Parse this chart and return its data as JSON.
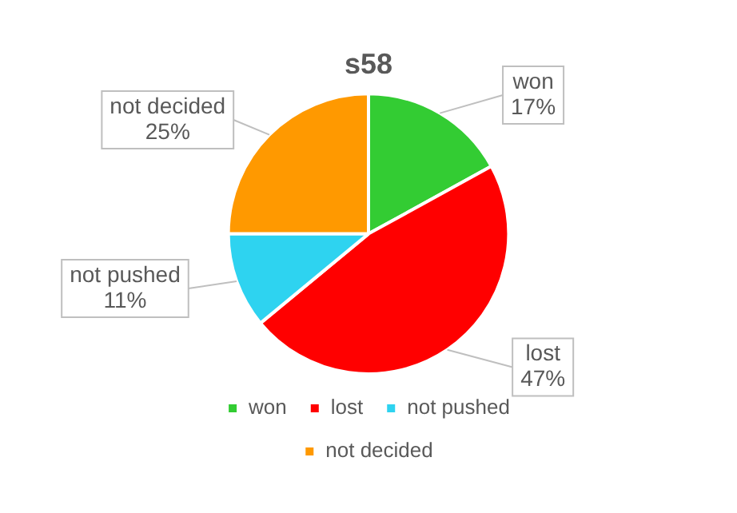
{
  "chart_data": {
    "type": "pie",
    "title": "s58",
    "categories": [
      "won",
      "lost",
      "not pushed",
      "not decided"
    ],
    "values": [
      17,
      47,
      11,
      25
    ],
    "colors": [
      "#33cc33",
      "#ff0000",
      "#2ed3f0",
      "#ff9900"
    ],
    "value_labels": [
      "17%",
      "47%",
      "11%",
      "25%"
    ],
    "legend": "bottom"
  }
}
